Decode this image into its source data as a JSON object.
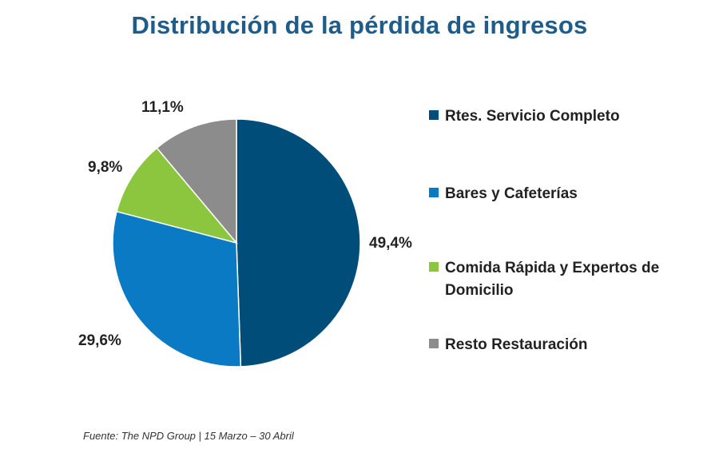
{
  "chart_data": {
    "type": "pie",
    "title": "Distribución de la pérdida de ingresos",
    "categories": [
      "Rtes. Servicio Completo",
      "Bares y Cafeterías",
      "Comida Rápida y Expertos de Domicilio",
      "Resto Restauración"
    ],
    "values": [
      49.4,
      29.6,
      9.8,
      11.1
    ],
    "value_labels": [
      "49,4%",
      "29,6%",
      "9,8%",
      "11,1%"
    ],
    "colors": [
      "#004d7a",
      "#0a7ac4",
      "#8cc63f",
      "#8c8c8c"
    ],
    "legend_position": "right"
  },
  "source": "Fuente: The NPD Group | 15 Marzo – 30 Abril"
}
